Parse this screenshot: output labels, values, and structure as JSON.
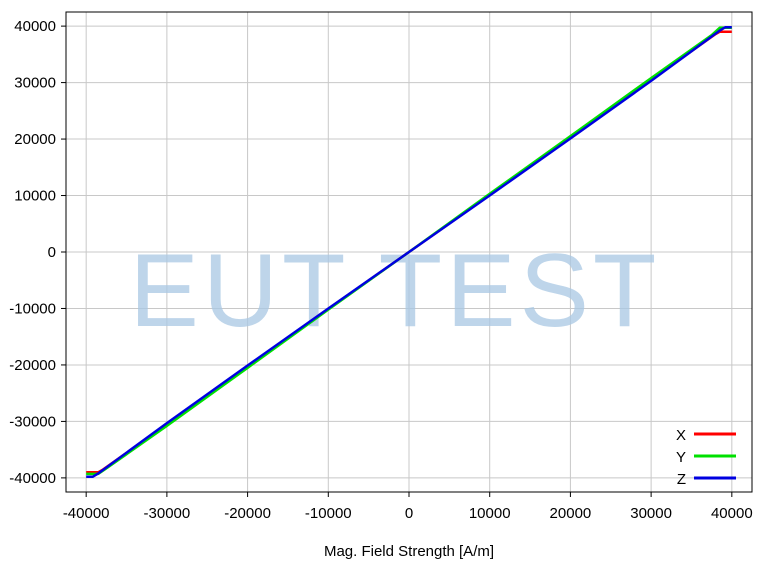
{
  "chart_data": {
    "type": "line",
    "title": "",
    "xlabel": "Mag. Field Strength [A/m]",
    "ylabel": "",
    "xlim": [
      -42500,
      42500
    ],
    "ylim": [
      -42500,
      42500
    ],
    "x_ticks": [
      -40000,
      -30000,
      -20000,
      -10000,
      0,
      10000,
      20000,
      30000,
      40000
    ],
    "y_ticks": [
      -40000,
      -30000,
      -20000,
      -10000,
      0,
      10000,
      20000,
      30000,
      40000
    ],
    "x_tick_labels": [
      "-40000",
      "-30000",
      "-20000",
      "-10000",
      "0",
      "10000",
      "20000",
      "30000",
      "40000"
    ],
    "y_tick_labels": [
      "-40000",
      "-30000",
      "-20000",
      "-10000",
      "0",
      "10000",
      "20000",
      "30000",
      "40000"
    ],
    "grid": true,
    "legend_position": "bottom-right",
    "series": [
      {
        "name": "X",
        "color": "#ff0000",
        "x": [
          -40000,
          -38500,
          -38000,
          -30000,
          -20000,
          -10000,
          0,
          10000,
          20000,
          30000,
          38000,
          38500,
          40000
        ],
        "y": [
          -39000,
          -39000,
          -38600,
          -30500,
          -20300,
          -10100,
          0,
          10100,
          20300,
          30500,
          38600,
          39000,
          39000
        ]
      },
      {
        "name": "Y",
        "color": "#00e000",
        "x": [
          -40000,
          -38500,
          -37500,
          -30000,
          -20000,
          -10000,
          0,
          10000,
          20000,
          30000,
          37500,
          38500,
          40000
        ],
        "y": [
          -39300,
          -39300,
          -38300,
          -30800,
          -20500,
          -10200,
          0,
          10300,
          20500,
          30800,
          38400,
          39700,
          39700
        ]
      },
      {
        "name": "Z",
        "color": "#0000e0",
        "x": [
          -40000,
          -39200,
          -38500,
          -30000,
          -20000,
          -10000,
          0,
          10000,
          20000,
          30000,
          38500,
          39200,
          40000
        ],
        "y": [
          -39800,
          -39800,
          -39200,
          -30300,
          -20100,
          -10000,
          0,
          10000,
          20100,
          30300,
          39200,
          39800,
          39800
        ]
      }
    ],
    "watermark": "EUT TEST"
  }
}
